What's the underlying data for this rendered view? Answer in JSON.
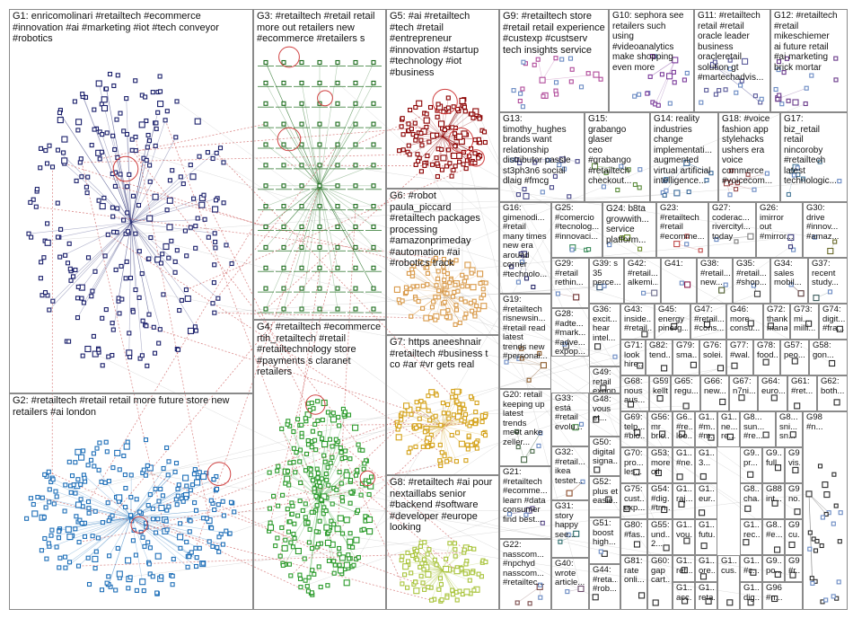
{
  "groups": [
    {
      "id": "G1",
      "label": "G1: enricomolinari #retailtech #ecommerce\n#innovation #ai #marketing #iot #tech conveyor\n#robotics",
      "color": "#1a1f6b"
    },
    {
      "id": "G2",
      "label": "G2: #retailtech #retail retail more future store new\nretailers #ai london",
      "color": "#1e6fb8"
    },
    {
      "id": "G3",
      "label": "G3: #retailtech #retail retail\nmore out retailers new\n#ecommerce #retailers s",
      "color": "#1b6b1b"
    },
    {
      "id": "G4",
      "label": "G4: #retailtech #ecommerce\nrtih_retailtech #retail\n#retailtechnology store\n#payments s claranet\nretailers",
      "color": "#2a9a2a"
    },
    {
      "id": "G5",
      "label": "G5: #ai #retailtech\n#tech #retail\n#entrepreneur\n#innovation #startup\n#technology #iot\n#business",
      "color": "#8b0000"
    },
    {
      "id": "G6",
      "label": "G6: #robot\npaula_piccard\n#retailtech packages\nprocessing\n#amazonprimeday\n#automation #ai\n#robotics track",
      "color": "#d99a4a"
    },
    {
      "id": "G7",
      "label": "G7: https aneeshnair\n#retailtech #business t\nco #ar #vr gets real",
      "color": "#d4a21a"
    },
    {
      "id": "G8",
      "label": "G8: #retailtech #ai pour\nnextaillabs senior\n#backend #software\n#developer #europe\nlooking",
      "color": "#a8c43a"
    },
    {
      "id": "G9",
      "label": "G9: #retailtech store\n#retail retail experience\n#custexp #custserv\ntech insights service",
      "color": "#b04a9a"
    },
    {
      "id": "G10",
      "label": "G10: sephora see\nretailers such\nusing\n#videoanalytics\nmake shopping\neven more",
      "color": "#7a3a9a"
    },
    {
      "id": "G11",
      "label": "G11: #retailtech\nretail #retail\noracle leader\nbusiness\noracleretail\nsolution gt\n#martechadvis...",
      "color": "#5a5a9a"
    },
    {
      "id": "G12",
      "label": "G12: #retailtech\n#retail\nmikeschiemer\nai future retail\n#ai marketing\nbrick mortar",
      "color": "#6a3a8a"
    },
    {
      "id": "G13",
      "label": "G13:\ntimothy_hughes\nbrands want\nrelationship\ndistributor passle\nst3ph3n6 social\ndlaig #fmcg",
      "color": "#4a4a8a"
    },
    {
      "id": "G15",
      "label": "G15:\ngrabango\nglaser\nceo\n#grabango\n#retailtech\ncheckout...",
      "color": "#5a8a3a"
    },
    {
      "id": "G14",
      "label": "G14: reality\nindustries\nchange\nimplementati...\naugmented\nvirtual artificial\nintelligence...",
      "color": "#3a6a9a"
    },
    {
      "id": "G18",
      "label": "G18: #voice\nfashion app\nstylehacks\nushers era\nvoice\ncommerce\n#voicecom...",
      "color": "#9a4a4a"
    },
    {
      "id": "G17",
      "label": "G17:\nbiz_retail\nretail\nnincoroby\n#retailtech\nlatest\ntechnologic...",
      "color": "#4a7a9a"
    },
    {
      "id": "G16",
      "label": "G16:\ngimenodi...\n#retail\nmany times\nnew era\naround\ncorner\n#technolo...",
      "color": "#2a2a6a"
    },
    {
      "id": "G25",
      "label": "G25: #comercio\n#tecnolog...\n#innovaci...",
      "color": "#3a8a5a"
    },
    {
      "id": "G24",
      "label": "G24: b8ta\ngrowwith...\nservice\nplatform...",
      "color": "#6a8a2a"
    },
    {
      "id": "G23",
      "label": "G23:\n#retailtech\n#retail\n#ecomme...",
      "color": "#c04a4a"
    },
    {
      "id": "G27",
      "label": "G27:\ncoderac...\nrivercityl...\ntoday",
      "color": "#7a7a7a"
    },
    {
      "id": "G26",
      "label": "G26:\nimirror\nout\n#mirror...",
      "color": "#3a3a7a"
    },
    {
      "id": "G30",
      "label": "G30:\ndrive\n#innov...\n#amaz...",
      "color": "#6a6a2a"
    },
    {
      "id": "G19",
      "label": "G19:\n#retailtech\nrisnewsin...\n#retail read\nlatest\ntrends new\n#personal...",
      "color": "#8a5a2a"
    },
    {
      "id": "G20",
      "label": "G20: retail\nkeeping up\nlatest\ntrends\nmeet anke\nzeller...",
      "color": "#4a6a4a"
    },
    {
      "id": "G21",
      "label": "G21:\n#retailtech\n#ecomme...\nlearn #data\nconsumer\nfind best...",
      "color": "#5a4a8a"
    },
    {
      "id": "G22",
      "label": "G22:\nnasscom...\n#npchyd\nnasscom...\n#retailtec...",
      "color": "#7a4a4a"
    },
    {
      "id": "G29",
      "label": "G29:\n#retail\nrethin...",
      "color": "#6a2a2a"
    },
    {
      "id": "G28",
      "label": "G28:\n#adte...\n#mark...\n#adve...\nexpop...",
      "color": "#4a4a4a"
    },
    {
      "id": "G33",
      "label": "G33:\nestá\n#retail\nevolu...",
      "color": "#4a8a4a"
    },
    {
      "id": "G32",
      "label": "G32:\n#retail...\nikea\ntestet...",
      "color": "#8a4a2a"
    },
    {
      "id": "G31",
      "label": "G31:\nstory\nhappy\nsee...",
      "color": "#2a6a6a"
    },
    {
      "id": "G40",
      "label": "G40:\nwrote\narticle...",
      "color": "#6a4a6a"
    },
    {
      "id": "G39",
      "label": "G39: s\n35\nperce...",
      "color": "#2a4a6a"
    },
    {
      "id": "G42",
      "label": "G42:\n#retail...\nalkemi...",
      "color": "#6a6a8a"
    },
    {
      "id": "G41",
      "label": "G41:",
      "color": "#8a1a4a"
    },
    {
      "id": "G38",
      "label": "G38:\n#retail...\nnew...",
      "color": "#4a5a2a"
    },
    {
      "id": "G35",
      "label": "G35:\n#retail...\n#shop...",
      "color": "#3a3a3a"
    },
    {
      "id": "G34",
      "label": "G34:\nsales\nmobil...",
      "color": "#5a3a3a"
    },
    {
      "id": "G37",
      "label": "G37:\nrecent\nstudy...",
      "color": "#3a5a5a"
    },
    {
      "id": "G36",
      "label": "G36:\nexcit...\nhear\nintel...",
      "color": "#2a2a2a"
    },
    {
      "id": "G43",
      "label": "G43:\ninside...\n#retail...",
      "color": "#2a2a2a"
    },
    {
      "id": "G45",
      "label": "G45:\nenergy\npinerg...",
      "color": "#2a2a2a"
    },
    {
      "id": "G47",
      "label": "G47:\n#retail...\n#cons...",
      "color": "#2a2a2a"
    },
    {
      "id": "G46",
      "label": "G46:\nmore\nconsu...",
      "color": "#2a2a2a"
    },
    {
      "id": "G72",
      "label": "G72:\nthankme...\nmanage...",
      "color": "#2a2a2a"
    },
    {
      "id": "G73",
      "label": "G73:\nmi...\nmilli...",
      "color": "#2a2a2a"
    },
    {
      "id": "G74",
      "label": "G74:\ndigit...\n#fra...",
      "color": "#2a2a2a"
    },
    {
      "id": "G49",
      "label": "G49:\nretail\nexpop...",
      "color": "#2a2a2a"
    },
    {
      "id": "G71",
      "label": "G71:\nlook\nhire...",
      "color": "#2a2a2a"
    },
    {
      "id": "G82",
      "label": "G82:\ntend...",
      "color": "#2a2a2a"
    },
    {
      "id": "G79",
      "label": "G79:\nsma...",
      "color": "#2a2a2a"
    },
    {
      "id": "G76",
      "label": "G76:\nsolei...",
      "color": "#2a2a2a"
    },
    {
      "id": "G77",
      "label": "G77:\n#wal...",
      "color": "#2a2a2a"
    },
    {
      "id": "G78",
      "label": "G78:\nfood...",
      "color": "#2a2a2a"
    },
    {
      "id": "G57",
      "label": "G57:\npeo...",
      "color": "#2a2a2a"
    },
    {
      "id": "G58",
      "label": "G58:\ngon...",
      "color": "#2a2a2a"
    },
    {
      "id": "G68",
      "label": "G68:\nnous\naus...",
      "color": "#2a2a2a"
    },
    {
      "id": "G59",
      "label": "G59:\nkellt...",
      "color": "#2a2a2a"
    },
    {
      "id": "G65",
      "label": "G65:\nregu...",
      "color": "#2a2a2a"
    },
    {
      "id": "G66",
      "label": "G66:\nnew...",
      "color": "#2a2a2a"
    },
    {
      "id": "G67",
      "label": "G67:\nn7ni...",
      "color": "#2a2a2a"
    },
    {
      "id": "G64",
      "label": "G64:\neuro...",
      "color": "#2a2a2a"
    },
    {
      "id": "G61",
      "label": "G61:\n#ret...",
      "color": "#2a2a2a"
    },
    {
      "id": "G62",
      "label": "G62:\nboth...",
      "color": "#2a2a2a"
    },
    {
      "id": "G48",
      "label": "G48:\nvous\net...",
      "color": "#2a2a2a"
    },
    {
      "id": "G69",
      "label": "G69:\ntelp...\n#bio...",
      "color": "#2a2a2a"
    },
    {
      "id": "G56",
      "label": "G56:\nmr\nbric...",
      "color": "#2a2a2a"
    },
    {
      "id": "G6x1",
      "label": "G6...\n#re...\nloo...",
      "color": "#2a2a2a"
    },
    {
      "id": "G1x1",
      "label": "G1...\n#m...\n#m...",
      "color": "#2a2a2a"
    },
    {
      "id": "G1x2",
      "label": "G1...\nne...\nre...",
      "color": "#2a2a2a"
    },
    {
      "id": "G8x1",
      "label": "G8...\nsun...\n#re...",
      "color": "#2a2a2a"
    },
    {
      "id": "G8x2",
      "label": "G8...\nsni...\nsn...",
      "color": "#2a2a2a"
    },
    {
      "id": "G50",
      "label": "G50:\ndigital\nsigna...",
      "color": "#2a2a2a"
    },
    {
      "id": "G70",
      "label": "G70:\npro...\nles...",
      "color": "#2a2a2a"
    },
    {
      "id": "G53",
      "label": "G53:\nmore\noil",
      "color": "#2a2a2a"
    },
    {
      "id": "G1x3",
      "label": "G1...\n#ne...",
      "color": "#2a2a2a"
    },
    {
      "id": "G1x4",
      "label": "G1...\n3...",
      "color": "#2a2a2a"
    },
    {
      "id": "G9x1",
      "label": "G9...\npr...",
      "color": "#2a2a2a"
    },
    {
      "id": "G9x2",
      "label": "G9...\nfull...",
      "color": "#2a2a2a"
    },
    {
      "id": "G94",
      "label": "G94\nvis...",
      "color": "#2a2a2a"
    },
    {
      "id": "G52",
      "label": "G52:\nplus et\neasie...",
      "color": "#2a2a2a"
    },
    {
      "id": "G75",
      "label": "G75:\ncust...\nexp...",
      "color": "#2a2a2a"
    },
    {
      "id": "G54",
      "label": "G54:\n#dig...\n#trn...",
      "color": "#2a2a2a"
    },
    {
      "id": "G1x5",
      "label": "G1...\nraj...",
      "color": "#2a2a2a"
    },
    {
      "id": "G1x6",
      "label": "G1...\neur...",
      "color": "#2a2a2a"
    },
    {
      "id": "G8x3",
      "label": "G8...\ncha...",
      "color": "#2a2a2a"
    },
    {
      "id": "G88",
      "label": "G88\nint...",
      "color": "#2a2a2a"
    },
    {
      "id": "G9x3",
      "label": "G9...\nno...",
      "color": "#2a2a2a"
    },
    {
      "id": "G51",
      "label": "G51:\nboost\nhigh...",
      "color": "#2a2a2a"
    },
    {
      "id": "G80",
      "label": "G80:\n#fas...",
      "color": "#2a2a2a"
    },
    {
      "id": "G55",
      "label": "G55:\nund...\n2...",
      "color": "#2a2a2a"
    },
    {
      "id": "G1x7",
      "label": "G1...\nvou...",
      "color": "#2a2a2a"
    },
    {
      "id": "G1x8",
      "label": "G1...\nfutu...",
      "color": "#2a2a2a"
    },
    {
      "id": "G1x9",
      "label": "G1...\nrec...",
      "color": "#2a2a2a"
    },
    {
      "id": "G8x4",
      "label": "G8...\n#e...",
      "color": "#2a2a2a"
    },
    {
      "id": "G9x4",
      "label": "G9...\ncu...",
      "color": "#2a2a2a"
    },
    {
      "id": "G44",
      "label": "G44:\n#reta...\n#rob...",
      "color": "#2a2a2a"
    },
    {
      "id": "G81",
      "label": "G81:\nrate\nonli...",
      "color": "#2a2a2a"
    },
    {
      "id": "G60",
      "label": "G60:\ngap\ncart...",
      "color": "#2a2a2a"
    },
    {
      "id": "G1x10",
      "label": "G1...\nret...",
      "color": "#2a2a2a"
    },
    {
      "id": "G1x11",
      "label": "G1...\nore...",
      "color": "#2a2a2a"
    },
    {
      "id": "G1x12",
      "label": "G1...\n#c...",
      "color": "#2a2a2a"
    },
    {
      "id": "G9x5",
      "label": "G9...\npo...",
      "color": "#2a2a2a"
    },
    {
      "id": "G9x6",
      "label": "G9...\n#r...",
      "color": "#2a2a2a"
    },
    {
      "id": "G1x13",
      "label": "G1...\nacc...",
      "color": "#2a2a2a"
    },
    {
      "id": "G1x14",
      "label": "G1...\nreta...",
      "color": "#2a2a2a"
    },
    {
      "id": "G1x15",
      "label": "G1...\ncus...",
      "color": "#2a2a2a"
    },
    {
      "id": "G1x16",
      "label": "G1...\ndig...",
      "color": "#2a2a2a"
    },
    {
      "id": "G96",
      "label": "G96\n#n...",
      "color": "#2a2a2a"
    },
    {
      "id": "G98",
      "label": "G98\n#n...",
      "color": "#2a2a2a"
    }
  ]
}
